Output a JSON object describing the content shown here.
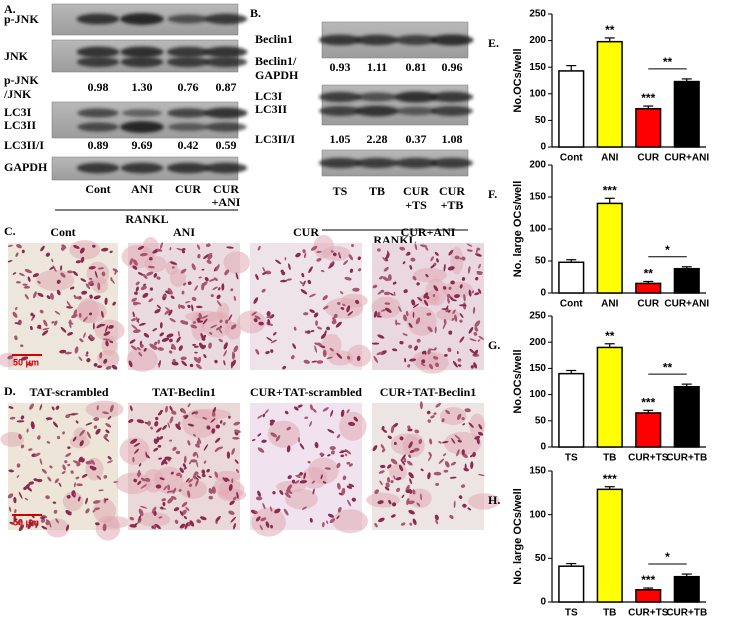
{
  "panel_a": {
    "label": "A.",
    "blots": {
      "pjnk": "p-JNK",
      "jnk": "JNK",
      "lc3": [
        "LC3I",
        "LC3II"
      ],
      "gapdh": "GAPDH"
    },
    "ratio1": {
      "label": [
        "p-JNK",
        "/JNK"
      ],
      "values": [
        "0.98",
        "1.30",
        "0.76",
        "0.87"
      ]
    },
    "ratio2": {
      "label": "LC3II/I",
      "values": [
        "0.89",
        "9.69",
        "0.42",
        "0.59"
      ]
    },
    "lanes": [
      [
        "Cont"
      ],
      [
        "ANI"
      ],
      [
        "CUR"
      ],
      [
        "CUR",
        "+ANI"
      ]
    ],
    "treatment": "RANKL"
  },
  "panel_b": {
    "label": "B.",
    "blots": {
      "beclin": "Beclin1",
      "lc3": [
        "LC3I",
        "LC3II"
      ]
    },
    "ratio1": {
      "label": [
        "Beclin1/",
        "GAPDH"
      ],
      "values": [
        "0.93",
        "1.11",
        "0.81",
        "0.96"
      ]
    },
    "ratio2": {
      "label": "LC3II/I",
      "values": [
        "1.05",
        "2.28",
        "0.37",
        "1.08"
      ]
    },
    "lanes": [
      [
        "TS"
      ],
      [
        "TB"
      ],
      [
        "CUR",
        "+TS"
      ],
      [
        "CUR",
        "+TB"
      ]
    ],
    "treatment": "RANKL"
  },
  "panel_c": {
    "label": "C.",
    "titles": [
      "Cont",
      "ANI",
      "CUR",
      "CUR+ANI"
    ],
    "scale_bar": "50 μm"
  },
  "panel_d": {
    "label": "D.",
    "titles": [
      "TAT-scrambled",
      "TAT-Beclin1",
      "CUR+TAT-scrambled",
      "CUR+TAT-Beclin1"
    ],
    "scale_bar": "50 μm"
  },
  "chart_data": [
    {
      "type": "bar",
      "panel": "E.",
      "y_label": "No.OCs/well",
      "categories": [
        "Cont",
        "ANI",
        "CUR",
        "CUR+ANI"
      ],
      "values": [
        143,
        198,
        72,
        123
      ],
      "errors": [
        10,
        7,
        5,
        5
      ],
      "colors": [
        "#ffffff",
        "#ffff00",
        "#ff0000",
        "#000000"
      ],
      "bar_labels": [
        null,
        "**",
        "***",
        null
      ],
      "bracket_label": "**",
      "ylim": [
        0,
        250
      ],
      "yticks": [
        0,
        50,
        100,
        150,
        200,
        250
      ]
    },
    {
      "type": "bar",
      "panel": "F.",
      "y_label": "No. large OCs/well",
      "categories": [
        "Cont",
        "ANI",
        "CUR",
        "CUR+ANI"
      ],
      "values": [
        48,
        140,
        15,
        38
      ],
      "errors": [
        4,
        8,
        3,
        3
      ],
      "colors": [
        "#ffffff",
        "#ffff00",
        "#ff0000",
        "#000000"
      ],
      "bar_labels": [
        null,
        "***",
        "**",
        null
      ],
      "bracket_label": "*",
      "ylim": [
        0,
        200
      ],
      "yticks": [
        0,
        50,
        100,
        150,
        200
      ]
    },
    {
      "type": "bar",
      "panel": "G.",
      "y_label": "No.OCs/well",
      "categories": [
        "TS",
        "TB",
        "CUR+TS",
        "CUR+TB"
      ],
      "values": [
        140,
        190,
        65,
        115
      ],
      "errors": [
        6,
        7,
        5,
        5
      ],
      "colors": [
        "#ffffff",
        "#ffff00",
        "#ff0000",
        "#000000"
      ],
      "bar_labels": [
        null,
        "**",
        "***",
        null
      ],
      "bracket_label": "**",
      "ylim": [
        0,
        250
      ],
      "yticks": [
        0,
        50,
        100,
        150,
        200,
        250
      ]
    },
    {
      "type": "bar",
      "panel": "H.",
      "y_label": "No. large OCs/well",
      "categories": [
        "TS",
        "TB",
        "CUR+TS",
        "CUR+TB"
      ],
      "values": [
        41,
        129,
        14,
        29
      ],
      "errors": [
        3,
        3,
        2,
        3
      ],
      "colors": [
        "#ffffff",
        "#ffff00",
        "#ff0000",
        "#000000"
      ],
      "bar_labels": [
        null,
        "***",
        "***",
        null
      ],
      "bracket_label": "*",
      "ylim": [
        0,
        150
      ],
      "yticks": [
        0,
        50,
        100,
        150
      ]
    }
  ]
}
